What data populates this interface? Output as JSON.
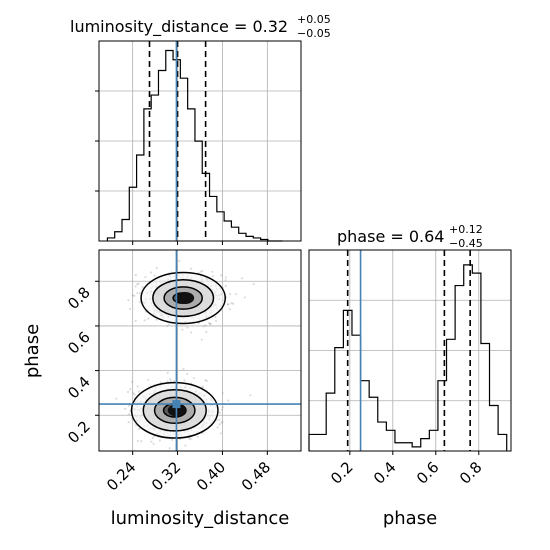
{
  "chart_data": [
    {
      "type": "histogram",
      "panel": "luminosity_distance-marginal",
      "title": {
        "main": "luminosity_distance = 0.32",
        "sup": "+0.05",
        "sub": "−0.05"
      },
      "xlim": [
        0.18,
        0.54
      ],
      "bin_edges": [
        0.195,
        0.208,
        0.221,
        0.234,
        0.247,
        0.26,
        0.273,
        0.286,
        0.299,
        0.312,
        0.325,
        0.338,
        0.351,
        0.364,
        0.377,
        0.39,
        0.403,
        0.416,
        0.429,
        0.442,
        0.455,
        0.468,
        0.481,
        0.494,
        0.507
      ],
      "counts": [
        2,
        6,
        14,
        35,
        56,
        86,
        95,
        111,
        124,
        118,
        106,
        86,
        65,
        44,
        29,
        19,
        13,
        9,
        5,
        3,
        2,
        1,
        0,
        0
      ],
      "quantiles": [
        0.27,
        0.32,
        0.37
      ],
      "truth": 0.318,
      "grid": true
    },
    {
      "type": "histogram",
      "panel": "phase-marginal",
      "title": {
        "main": "phase = 0.64",
        "sup": "+0.12",
        "sub": "−0.45"
      },
      "xlabel": "phase",
      "xlim": [
        0.01,
        0.95
      ],
      "xticks": [
        "0.2",
        "0.4",
        "0.6",
        "0.8"
      ],
      "bin_edges": [
        0.01,
        0.05,
        0.09,
        0.13,
        0.17,
        0.21,
        0.25,
        0.29,
        0.33,
        0.37,
        0.41,
        0.45,
        0.49,
        0.53,
        0.57,
        0.61,
        0.65,
        0.69,
        0.73,
        0.77,
        0.81,
        0.85,
        0.89,
        0.93
      ],
      "counts": [
        4,
        4,
        14,
        25,
        34,
        28,
        17,
        13,
        7,
        5,
        2,
        2,
        1,
        3,
        5,
        17,
        27,
        40,
        45,
        43,
        26,
        11,
        4
      ],
      "quantiles": [
        0.19,
        0.64,
        0.76
      ],
      "truth": 0.25,
      "grid": true
    },
    {
      "type": "contour",
      "panel": "2d-joint",
      "xlabel": "luminosity_distance",
      "ylabel": "phase",
      "xlim": [
        0.18,
        0.54
      ],
      "ylim": [
        0.04,
        0.94
      ],
      "xticks": [
        "0.24",
        "0.32",
        "0.40",
        "0.48"
      ],
      "yticks": [
        "0.2",
        "0.4",
        "0.6",
        "0.8"
      ],
      "truth": {
        "x": 0.318,
        "y": 0.25
      },
      "modes": [
        {
          "x": 0.33,
          "y": 0.725,
          "contour_radii": [
            {
              "rx": 0.018,
              "ry": 0.023
            },
            {
              "rx": 0.034,
              "ry": 0.05
            },
            {
              "rx": 0.054,
              "ry": 0.082
            },
            {
              "rx": 0.075,
              "ry": 0.114
            }
          ]
        },
        {
          "x": 0.315,
          "y": 0.222,
          "contour_radii": [
            {
              "rx": 0.02,
              "ry": 0.03
            },
            {
              "rx": 0.036,
              "ry": 0.058
            },
            {
              "rx": 0.056,
              "ry": 0.092
            },
            {
              "rx": 0.077,
              "ry": 0.124
            }
          ]
        }
      ],
      "grid": true
    }
  ]
}
